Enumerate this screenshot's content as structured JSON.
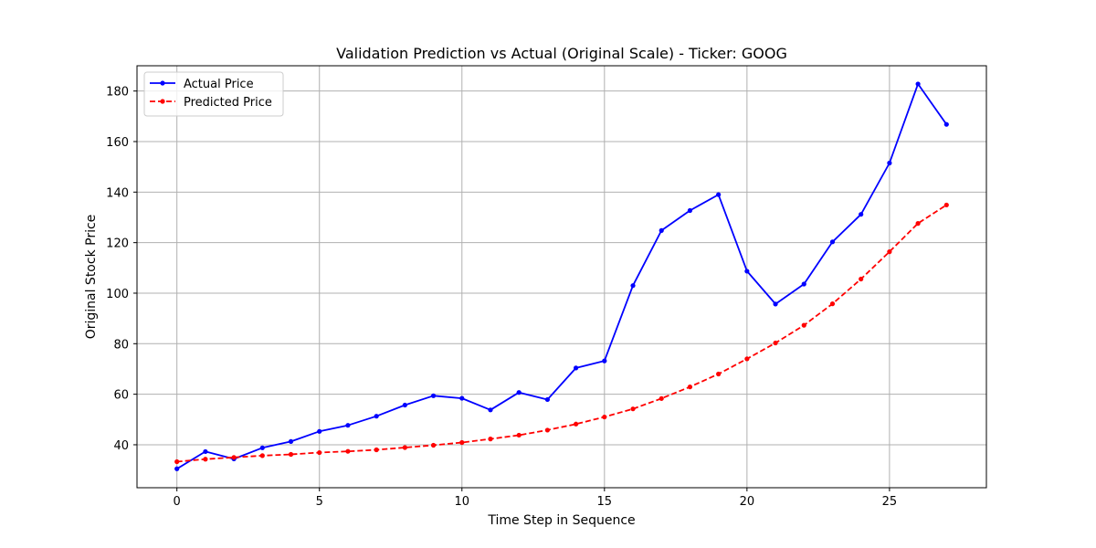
{
  "chart_data": {
    "type": "line",
    "title": "Validation Prediction vs Actual (Original Scale) - Ticker: GOOG",
    "xlabel": "Time Step in Sequence",
    "ylabel": "Original Stock Price",
    "xlim": [
      -1.4,
      28.4
    ],
    "ylim": [
      23,
      190
    ],
    "xticks": [
      0,
      5,
      10,
      15,
      20,
      25
    ],
    "yticks": [
      40,
      60,
      80,
      100,
      120,
      140,
      160,
      180
    ],
    "grid": true,
    "legend_position": "top-left",
    "x": [
      0,
      1,
      2,
      3,
      4,
      5,
      6,
      7,
      8,
      9,
      10,
      11,
      12,
      13,
      14,
      15,
      16,
      17,
      18,
      19,
      20,
      21,
      22,
      23,
      24,
      25,
      26,
      27
    ],
    "series": [
      {
        "name": "Actual Price",
        "color": "#0000ff",
        "style": "solid",
        "values": [
          30.5,
          37.3,
          34.4,
          38.8,
          41.3,
          45.3,
          47.7,
          51.3,
          55.7,
          59.4,
          58.4,
          53.8,
          60.7,
          57.9,
          70.4,
          73.2,
          103.0,
          124.8,
          132.7,
          139.0,
          108.7,
          95.7,
          103.6,
          120.3,
          131.2,
          151.5,
          182.8,
          166.8
        ]
      },
      {
        "name": "Predicted Price",
        "color": "#ff0000",
        "style": "dashed",
        "values": [
          33.3,
          34.3,
          35.0,
          35.7,
          36.2,
          36.9,
          37.4,
          38.0,
          38.9,
          39.8,
          40.9,
          42.3,
          43.8,
          45.8,
          48.2,
          51.0,
          54.2,
          58.3,
          62.9,
          68.0,
          74.0,
          80.3,
          87.3,
          95.8,
          105.6,
          116.4,
          127.6,
          134.9
        ]
      }
    ]
  }
}
